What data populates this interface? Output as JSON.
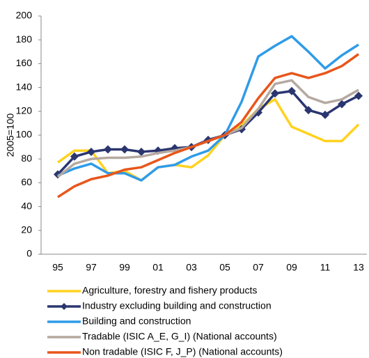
{
  "chart_data": {
    "type": "line",
    "y_label": "2005=100",
    "categories": [
      "95",
      null,
      "97",
      null,
      "99",
      null,
      "01",
      null,
      "03",
      null,
      "05",
      null,
      "07",
      null,
      "09",
      null,
      "11",
      null,
      "13"
    ],
    "ylim": [
      0,
      200
    ],
    "yticks": [
      0,
      20,
      40,
      60,
      80,
      100,
      120,
      140,
      160,
      180,
      200
    ],
    "series": [
      {
        "name": "Agriculture, forestry and fishery products",
        "color": "#FFD21F",
        "values": [
          77,
          87,
          87,
          68,
          70,
          62,
          73,
          75,
          73,
          83,
          100,
          108,
          122,
          130,
          107,
          101,
          95,
          95,
          109
        ]
      },
      {
        "name": "Industry excluding building and construction",
        "color": "#2B3670",
        "marker": "diamond",
        "values": [
          67,
          82,
          86,
          88,
          88,
          86,
          87,
          89,
          90,
          96,
          100,
          105,
          119,
          135,
          137,
          121,
          117,
          126,
          133
        ]
      },
      {
        "name": "Building and construction",
        "color": "#2F9BE8",
        "values": [
          66,
          72,
          76,
          68,
          68,
          62,
          73,
          75,
          82,
          87,
          100,
          128,
          166,
          175,
          183,
          170,
          156,
          167,
          176
        ]
      },
      {
        "name": "Tradable (ISIC A_E, G_I) (National accounts)",
        "color": "#B5A9A0",
        "values": [
          65,
          76,
          80,
          81,
          81,
          82,
          85,
          87,
          90,
          95,
          100,
          106,
          122,
          143,
          146,
          132,
          127,
          130,
          138
        ]
      },
      {
        "name": "Non tradable (ISIC F, J_P) (National accounts)",
        "color": "#E8561B",
        "values": [
          48,
          57,
          63,
          66,
          71,
          73,
          79,
          85,
          90,
          95,
          100,
          111,
          131,
          148,
          152,
          148,
          152,
          158,
          168
        ]
      }
    ]
  }
}
